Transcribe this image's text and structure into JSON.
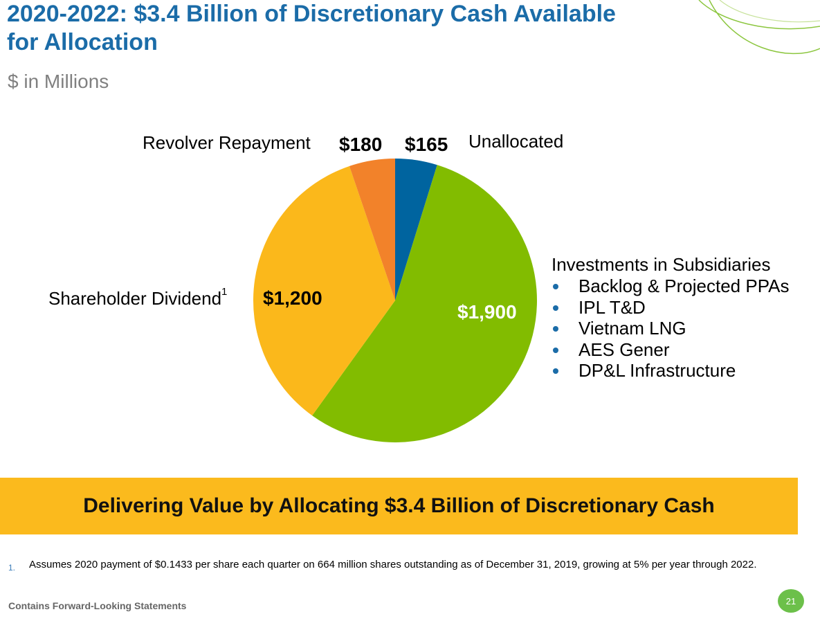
{
  "header": {
    "title": "2020-2022: $3.4 Billion of Discretionary Cash Available for Allocation",
    "subtitle": "$ in Millions"
  },
  "chart_data": {
    "type": "pie",
    "unit": "$ in Millions",
    "slices": [
      {
        "label": "Unallocated",
        "value": 165,
        "value_label": "$165",
        "color": "#00649f"
      },
      {
        "label": "Investments in Subsidiaries",
        "value": 1900,
        "value_label": "$1,900",
        "color": "#82bc00"
      },
      {
        "label": "Shareholder Dividend",
        "footnote_mark": "1",
        "value": 1200,
        "value_label": "$1,200",
        "color": "#fbb81b"
      },
      {
        "label": "Revolver Repayment",
        "value": 180,
        "value_label": "$180",
        "color": "#f2822a"
      }
    ],
    "start_angle_deg": 0,
    "direction": "clockwise"
  },
  "investments": {
    "heading": "Investments in Subsidiaries",
    "items": [
      "Backlog & Projected PPAs",
      "IPL T&D",
      "Vietnam LNG",
      "AES Gener",
      "DP&L Infrastructure"
    ]
  },
  "banner": {
    "text": "Delivering Value by Allocating $3.4 Billion of Discretionary Cash"
  },
  "footnote": {
    "number": "1.",
    "text": "Assumes 2020 payment of $0.1433 per share each quarter on 664 million shares outstanding as of December 31, 2019, growing at 5% per year through 2022."
  },
  "footer": {
    "left_text": "Contains Forward-Looking Statements",
    "page_number": "21"
  },
  "colors": {
    "title": "#1b6ca8",
    "banner": "#fbba1d",
    "deco_green": "#8cc63f",
    "bullet": "#1b6ca8"
  }
}
